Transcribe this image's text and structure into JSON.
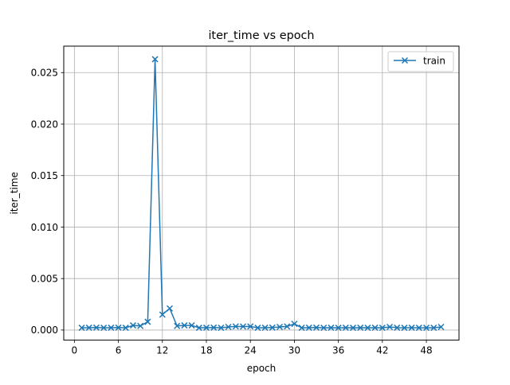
{
  "chart_data": {
    "type": "line",
    "title": "iter_time vs epoch",
    "xlabel": "epoch",
    "ylabel": "iter_time",
    "xlim": [
      -1.45,
      52.45
    ],
    "ylim": [
      -0.00098,
      0.02757
    ],
    "xticks": [
      0,
      6,
      12,
      18,
      24,
      30,
      36,
      42,
      48
    ],
    "xtick_labels": [
      "0",
      "6",
      "12",
      "18",
      "24",
      "30",
      "36",
      "42",
      "48"
    ],
    "yticks": [
      0.0,
      0.005,
      0.01,
      0.015,
      0.02,
      0.025
    ],
    "ytick_labels": [
      "0.000",
      "0.005",
      "0.010",
      "0.015",
      "0.020",
      "0.025"
    ],
    "grid": true,
    "legend_position": "upper right",
    "series": [
      {
        "name": "train",
        "color": "#1f77b4",
        "marker": "x",
        "x": [
          1,
          2,
          3,
          4,
          5,
          6,
          7,
          8,
          9,
          10,
          11,
          12,
          13,
          14,
          15,
          16,
          17,
          18,
          19,
          20,
          21,
          22,
          23,
          24,
          25,
          26,
          27,
          28,
          29,
          30,
          31,
          32,
          33,
          34,
          35,
          36,
          37,
          38,
          39,
          40,
          41,
          42,
          43,
          44,
          45,
          46,
          47,
          48,
          49,
          50
        ],
        "values": [
          0.00022,
          0.00023,
          0.00024,
          0.00022,
          0.00023,
          0.00024,
          0.00022,
          0.00045,
          0.0004,
          0.0008,
          0.0263,
          0.0015,
          0.0021,
          0.0004,
          0.00045,
          0.00045,
          0.00022,
          0.00023,
          0.00024,
          0.00022,
          0.0003,
          0.00035,
          0.00034,
          0.00035,
          0.00022,
          0.00023,
          0.00024,
          0.0003,
          0.00035,
          0.0006,
          0.00022,
          0.00023,
          0.00024,
          0.00022,
          0.00023,
          0.00022,
          0.00023,
          0.00022,
          0.00023,
          0.00022,
          0.00023,
          0.00022,
          0.0003,
          0.00023,
          0.00022,
          0.00023,
          0.00022,
          0.00022,
          0.00022,
          0.0003
        ]
      }
    ]
  }
}
